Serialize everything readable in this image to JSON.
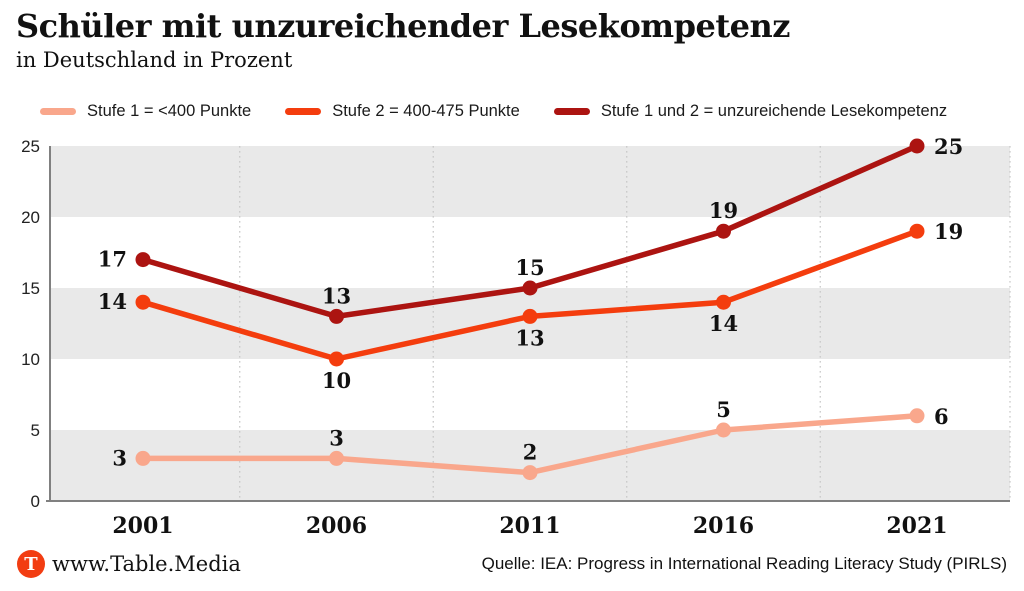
{
  "header": {
    "title": "Schüler mit unzureichender Lesekompetenz",
    "subtitle": "in Deutschland in Prozent"
  },
  "legend": {
    "items": [
      {
        "label": "Stufe 1 = <400 Punkte",
        "color": "#F9A78C"
      },
      {
        "label": "Stufe 2 = 400-475 Punkte",
        "color": "#F43D0E"
      },
      {
        "label": "Stufe 1 und 2 = unzureichende Lesekompetenz",
        "color": "#AC1411"
      }
    ]
  },
  "chart_data": {
    "type": "line",
    "title": "Schüler mit unzureichender Lesekompetenz",
    "subtitle": "in Deutschland in Prozent",
    "categories": [
      "2001",
      "2006",
      "2011",
      "2016",
      "2021"
    ],
    "ylim": [
      0,
      25
    ],
    "yticks": [
      0,
      5,
      10,
      15,
      20,
      25
    ],
    "grid": {
      "bands": [
        [
          0,
          5
        ],
        [
          10,
          15
        ],
        [
          20,
          25
        ]
      ],
      "band_color": "#E9E9E9",
      "vertical_gridlines": "dotted at category midpoints and right edge",
      "gridline_color": "#C6C6C6",
      "axis_color": "#808080"
    },
    "legend_position": "top",
    "series": [
      {
        "name": "Stufe 1 = <400 Punkte",
        "color": "#F9A78C",
        "values": [
          3,
          3,
          2,
          5,
          6
        ],
        "label_pos": [
          "left",
          "above",
          "above",
          "above",
          "right"
        ]
      },
      {
        "name": "Stufe 2 = 400-475 Punkte",
        "color": "#F43D0E",
        "values": [
          14,
          10,
          13,
          14,
          19
        ],
        "label_pos": [
          "left",
          "below",
          "below",
          "below",
          "right"
        ]
      },
      {
        "name": "Stufe 1 und 2 = unzureichende Lesekompetenz",
        "color": "#AC1411",
        "values": [
          17,
          13,
          15,
          19,
          25
        ],
        "label_pos": [
          "left",
          "above",
          "above",
          "above",
          "right"
        ]
      }
    ]
  },
  "footer": {
    "logo_letter": "T",
    "logo_color": "#F23D12",
    "site": "www.Table.Media",
    "source": "Quelle: IEA: Progress in International Reading Literacy Study (PIRLS)"
  }
}
